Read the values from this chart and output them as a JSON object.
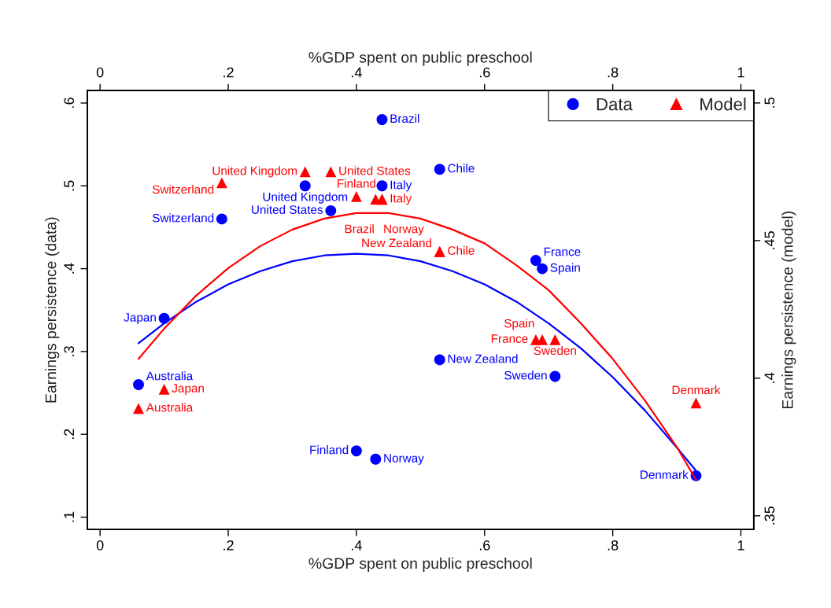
{
  "chart_data": {
    "type": "scatter",
    "xlabel": "%GDP spent on public preschool",
    "x2label": "%GDP spent on public preschool",
    "ylabel": "Earnings persistence (data)",
    "y2label": "Earnings persistence (model)",
    "xlim": [
      -0.02,
      1.02
    ],
    "x2lim": [
      -0.02,
      1.02
    ],
    "xticks": [
      0,
      {
        "value": 0.2,
        "label": ".2"
      },
      {
        "value": 0.4,
        "label": ".4"
      },
      {
        "value": 0.6,
        "label": ".6"
      },
      {
        "value": 0.8,
        "label": ".8"
      },
      1
    ],
    "x2ticks": [
      0,
      {
        "value": 0.2,
        "label": ".2"
      },
      {
        "value": 0.4,
        "label": ".4"
      },
      {
        "value": 0.6,
        "label": ".6"
      },
      {
        "value": 0.8,
        "label": ".8"
      },
      1
    ],
    "ylim": [
      0.085,
      0.615
    ],
    "yticks": [
      {
        "value": 0.1,
        "label": ".1"
      },
      {
        "value": 0.2,
        "label": ".2"
      },
      {
        "value": 0.3,
        "label": ".3"
      },
      {
        "value": 0.4,
        "label": ".4"
      },
      {
        "value": 0.5,
        "label": ".5"
      },
      {
        "value": 0.6,
        "label": ".6"
      }
    ],
    "y2lim": [
      0.345,
      0.5045
    ],
    "y2ticks": [
      {
        "value": 0.35,
        "label": ".35"
      },
      {
        "value": 0.4,
        "label": ".4"
      },
      {
        "value": 0.45,
        "label": ".45"
      },
      {
        "value": 0.5,
        "label": ".5"
      }
    ],
    "legend": "top right",
    "grid": false,
    "series": [
      {
        "name": "Data",
        "marker": "circle",
        "axis": "y",
        "color": "#0000ff",
        "x": [
          0.44,
          0.53,
          0.32,
          0.44,
          0.36,
          0.19,
          0.68,
          0.69,
          0.1,
          0.53,
          0.71,
          0.06,
          0.4,
          0.43,
          0.93
        ],
        "values": [
          0.58,
          0.52,
          0.5,
          0.5,
          0.47,
          0.46,
          0.41,
          0.4,
          0.34,
          0.29,
          0.27,
          0.26,
          0.18,
          0.17,
          0.15
        ],
        "value_labels": [
          "Brazil",
          "Chile",
          "United Kingdom",
          "Italy",
          "United States",
          "Switzerland",
          "France",
          "Spain",
          "Japan",
          "New Zealand",
          "Sweden",
          "Australia",
          "Finland",
          "Norway",
          "Denmark"
        ]
      },
      {
        "name": "Model",
        "marker": "triangle",
        "axis": "y2",
        "color": "#ff0000",
        "x": [
          0.19,
          0.32,
          0.36,
          0.4,
          0.43,
          0.44,
          0.44,
          0.53,
          0.53,
          0.68,
          0.69,
          0.71,
          0.1,
          0.06,
          0.93
        ],
        "values": [
          0.471,
          0.475,
          0.475,
          0.466,
          0.465,
          0.465,
          0.465,
          0.446,
          0.446,
          0.414,
          0.414,
          0.414,
          0.396,
          0.389,
          0.391
        ],
        "value_labels": [
          "Switzerland",
          "United Kingdom",
          "United States",
          "Finland",
          "Norway",
          "Italy",
          "Brazil",
          "Chile",
          "New Zealand",
          "France",
          "Spain",
          "Sweden",
          "Japan",
          "Australia",
          "Denmark"
        ]
      },
      {
        "type": "line",
        "axis": "y",
        "color": "#0000ff",
        "x": [
          0.06,
          0.1,
          0.15,
          0.2,
          0.25,
          0.3,
          0.35,
          0.4,
          0.45,
          0.5,
          0.55,
          0.6,
          0.65,
          0.7,
          0.75,
          0.8,
          0.85,
          0.9,
          0.93
        ],
        "values": [
          0.31,
          0.334,
          0.36,
          0.381,
          0.397,
          0.409,
          0.416,
          0.418,
          0.416,
          0.409,
          0.397,
          0.381,
          0.36,
          0.334,
          0.304,
          0.269,
          0.229,
          0.184,
          0.156
        ]
      },
      {
        "type": "line",
        "axis": "y2",
        "color": "#ff0000",
        "x": [
          0.06,
          0.1,
          0.15,
          0.2,
          0.25,
          0.3,
          0.35,
          0.4,
          0.45,
          0.5,
          0.55,
          0.6,
          0.65,
          0.7,
          0.75,
          0.8,
          0.85,
          0.9,
          0.93
        ],
        "values": [
          0.407,
          0.418,
          0.43,
          0.44,
          0.448,
          0.454,
          0.458,
          0.46,
          0.46,
          0.458,
          0.454,
          0.449,
          0.441,
          0.432,
          0.42,
          0.407,
          0.392,
          0.375,
          0.363
        ]
      }
    ]
  }
}
